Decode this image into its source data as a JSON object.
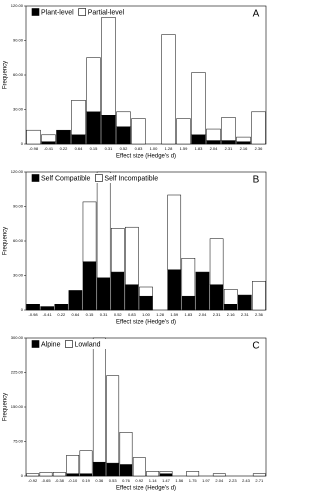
{
  "chart_data": [
    {
      "type": "bar",
      "stacked": true,
      "panel_label": "A",
      "legend": "top-left",
      "xlabel": "Effect size (Hedge's d)",
      "ylabel": "Frequency",
      "categories": [
        "-0.98",
        "-0.41",
        "0.22",
        "0.64",
        "0.15",
        "0.31",
        "0.52",
        "0.83",
        "1.00",
        "1.28",
        "1.59",
        "1.83",
        "2.04",
        "2.31",
        "2.16",
        "2.36"
      ],
      "series": [
        {
          "name": "Plant-level",
          "color": "#000000",
          "values": [
            0,
            2,
            12,
            8,
            28,
            25,
            15,
            0,
            0,
            0,
            0,
            8,
            3,
            3,
            2,
            0
          ]
        },
        {
          "name": "Partial-level",
          "color": "#ffffff",
          "values": [
            12,
            6,
            0,
            30,
            47,
            85,
            13,
            22,
            0,
            95,
            22,
            54,
            10,
            20,
            4,
            28
          ]
        }
      ],
      "ylim": [
        0,
        120
      ],
      "yticks": [
        0,
        {
          "value": 30,
          "label": "30.00"
        },
        {
          "value": 60,
          "label": "60.00"
        },
        {
          "value": 90,
          "label": "90.00"
        },
        {
          "value": 120,
          "label": "120.00"
        }
      ]
    },
    {
      "type": "bar",
      "stacked": true,
      "panel_label": "B",
      "legend": "top-left",
      "xlabel": "Effect size (Hedge's d)",
      "ylabel": "Frequency",
      "categories": [
        "-0.98",
        "-0.41",
        "0.22",
        "0.64",
        "0.15",
        "0.31",
        "0.52",
        "0.83",
        "1.00",
        "1.28",
        "1.59",
        "1.83",
        "2.04",
        "2.31",
        "2.16",
        "2.31",
        "2.36"
      ],
      "series": [
        {
          "name": "Self Compatible",
          "color": "#000000",
          "values": [
            5,
            3,
            5,
            17,
            42,
            28,
            33,
            22,
            12,
            0,
            35,
            12,
            33,
            22,
            5,
            13,
            0
          ]
        },
        {
          "name": "Self Incompatible",
          "color": "#ffffff",
          "values": [
            0,
            0,
            0,
            0,
            52,
            92,
            38,
            50,
            8,
            0,
            65,
            33,
            0,
            40,
            13,
            0,
            25
          ]
        }
      ],
      "ylim": [
        0,
        120
      ],
      "yticks": [
        0,
        {
          "value": 30,
          "label": "30.00"
        },
        {
          "value": 60,
          "label": "60.00"
        },
        {
          "value": 90,
          "label": "90.00"
        },
        {
          "value": 120,
          "label": "120.00"
        }
      ]
    },
    {
      "type": "bar",
      "stacked": true,
      "panel_label": "C",
      "legend": "top-left",
      "xlabel": "Effect size (Hedge's d)",
      "ylabel": "Frequency",
      "categories": [
        "-0.92",
        "-0.65",
        "-0.38",
        "-0.10",
        "0.19",
        "0.36",
        "0.53",
        "0.76",
        "0.92",
        "1.14",
        "1.47",
        "1.56",
        "1.75",
        "1.97",
        "2.04",
        "2.23",
        "2.43",
        "2.71"
      ],
      "series": [
        {
          "name": "Alpine",
          "color": "#000000",
          "values": [
            0,
            0,
            0,
            5,
            5,
            30,
            28,
            25,
            0,
            0,
            5,
            0,
            0,
            0,
            0,
            0,
            0,
            0
          ]
        },
        {
          "name": "Lowland",
          "color": "#ffffff",
          "values": [
            5,
            8,
            8,
            40,
            50,
            270,
            190,
            70,
            40,
            10,
            5,
            0,
            10,
            0,
            5,
            0,
            0,
            5
          ]
        }
      ],
      "ylim": [
        0,
        300
      ],
      "yticks": [
        0,
        {
          "value": 75,
          "label": "75.00"
        },
        {
          "value": 150,
          "label": "150.00"
        },
        {
          "value": 225,
          "label": "225.00"
        },
        {
          "value": 300,
          "label": "300.00"
        }
      ]
    }
  ]
}
